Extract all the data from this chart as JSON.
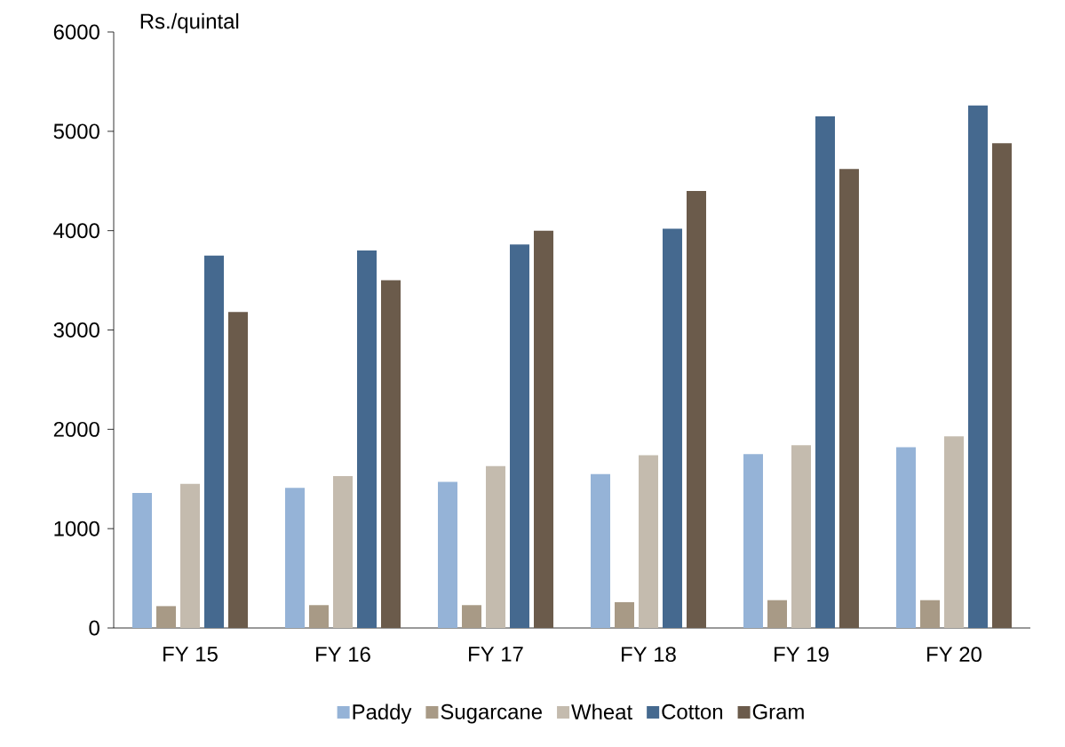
{
  "chart_data": {
    "type": "bar",
    "ylabel": "Rs./quintal",
    "categories": [
      "FY 15",
      "FY 16",
      "FY 17",
      "FY 18",
      "FY 19",
      "FY 20"
    ],
    "series": [
      {
        "name": "Paddy",
        "color": "#95b3d7",
        "values": [
          1360,
          1410,
          1470,
          1550,
          1750,
          1820
        ]
      },
      {
        "name": "Sugarcane",
        "color": "#a89a86",
        "values": [
          220,
          230,
          230,
          260,
          280,
          280
        ]
      },
      {
        "name": "Wheat",
        "color": "#c4bbae",
        "values": [
          1450,
          1530,
          1630,
          1740,
          1840,
          1930
        ]
      },
      {
        "name": "Cotton",
        "color": "#45698f",
        "values": [
          3750,
          3800,
          3860,
          4020,
          5150,
          5260
        ]
      },
      {
        "name": "Gram",
        "color": "#6b5b4b",
        "values": [
          3180,
          3500,
          4000,
          4400,
          4620,
          4880
        ]
      }
    ],
    "ylim": [
      0,
      6000
    ],
    "yticks": [
      0,
      1000,
      2000,
      3000,
      4000,
      5000,
      6000
    ],
    "legend": "bottom"
  }
}
